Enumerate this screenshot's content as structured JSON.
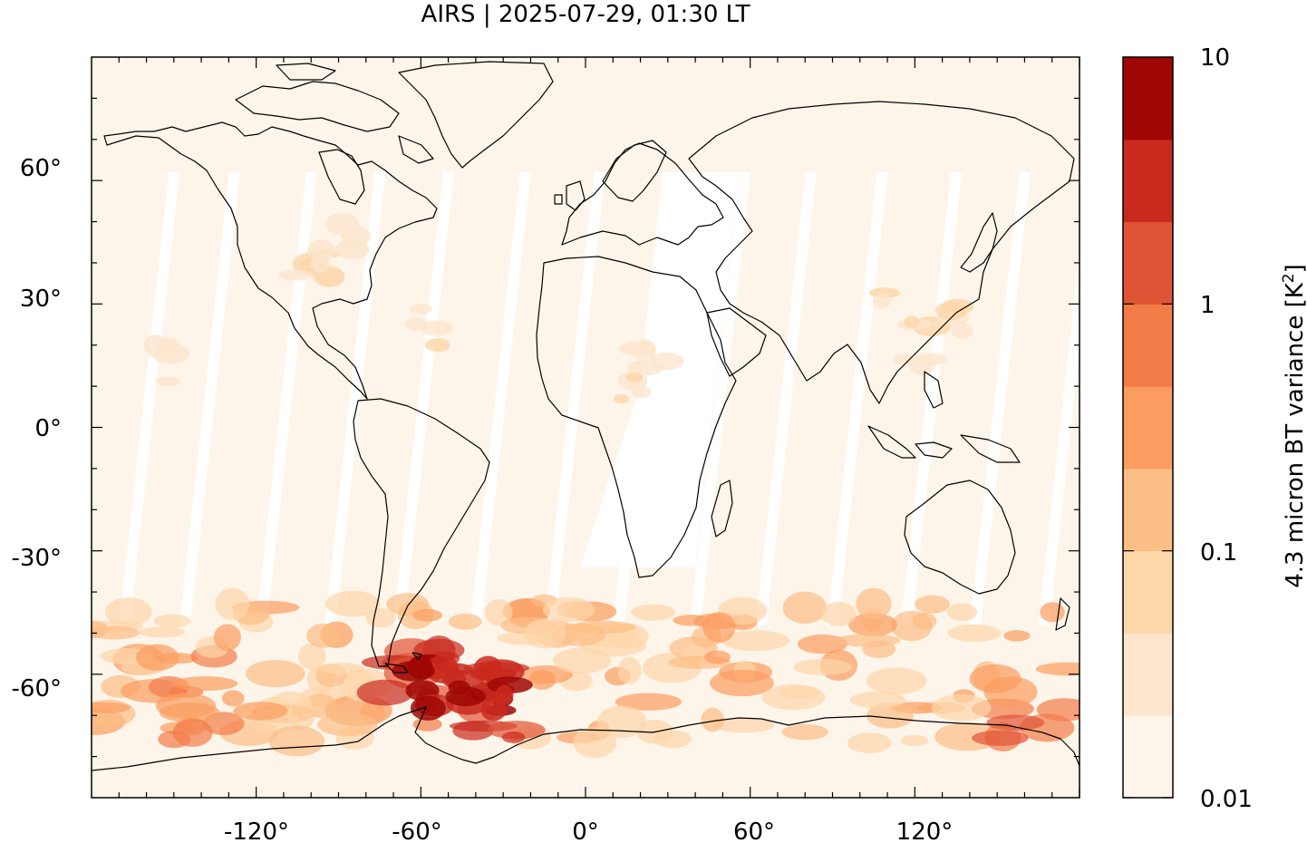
{
  "title": "AIRS | 2025-07-29, 01:30 LT",
  "map": {
    "projection": "equirectangular",
    "lon_range": [
      -180,
      180
    ],
    "lat_range": [
      -90,
      90
    ],
    "x_tick_labels": [
      "-120°",
      "-60°",
      "0°",
      "60°",
      "120°"
    ],
    "y_tick_labels": [
      "60°",
      "30°",
      "0°",
      "-30°",
      "-60°"
    ],
    "background_color": "#fef5ea",
    "coastline_color": "#000000"
  },
  "colorbar": {
    "label_main": "4.3 micron BT variance [K",
    "label_sup": "2",
    "label_end": "]",
    "scale": "log",
    "range": [
      0.01,
      10
    ],
    "tick_labels": [
      "10",
      "1",
      "0.1",
      "0.01"
    ],
    "colors": [
      "#fef5ea",
      "#fde6cd",
      "#fdd6a9",
      "#fcbe84",
      "#fb9c60",
      "#f27c48",
      "#e05436",
      "#c92a1e",
      "#9e0704"
    ]
  },
  "chart_data": {
    "type": "heatmap",
    "title": "AIRS | 2025-07-29, 01:30 LT",
    "xlabel": "",
    "ylabel": "",
    "colorbar_label": "4.3 micron BT variance [K2]",
    "xlim": [
      -180,
      180
    ],
    "ylim": [
      -90,
      90
    ],
    "color_scale": "log",
    "color_range": [
      0.01,
      10
    ],
    "x_ticks": [
      -120,
      -60,
      0,
      60,
      120
    ],
    "y_ticks": [
      60,
      30,
      0,
      -30,
      -60
    ]
  }
}
